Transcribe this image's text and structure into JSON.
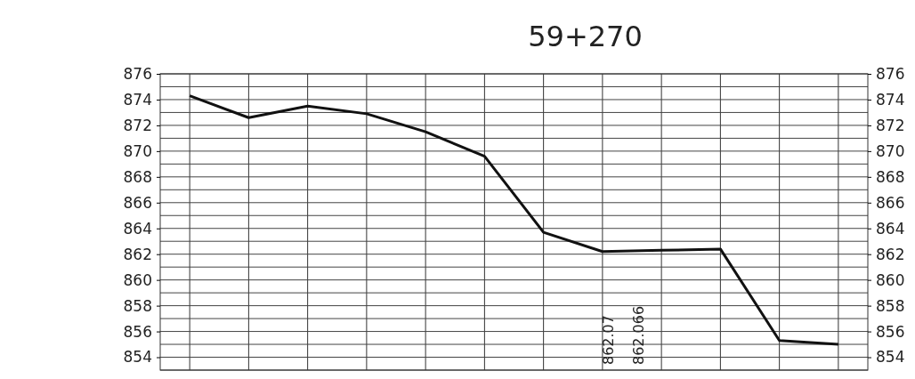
{
  "chart_data": {
    "type": "line",
    "title": "59+270",
    "categories": [
      null,
      null,
      null,
      null,
      null,
      null,
      null,
      null,
      null,
      null,
      null,
      null
    ],
    "series": [
      {
        "color": "#111111",
        "values": [
          874.3,
          872.6,
          873.5,
          872.9,
          871.5,
          869.6,
          863.7,
          862.2,
          862.3,
          862.4,
          855.3,
          855.0
        ]
      }
    ],
    "ylim": [
      853,
      876
    ],
    "yticks": [
      854,
      856,
      858,
      860,
      862,
      864,
      866,
      868,
      870,
      872,
      874,
      876
    ],
    "y2lim": [
      853,
      876
    ],
    "y2ticks": [
      854,
      856,
      858,
      860,
      862,
      864,
      866,
      868,
      870,
      872,
      874,
      876
    ],
    "annotations": [
      "862.07",
      "862.066"
    ],
    "grid": true,
    "marker": "none",
    "line_style": "solid"
  }
}
